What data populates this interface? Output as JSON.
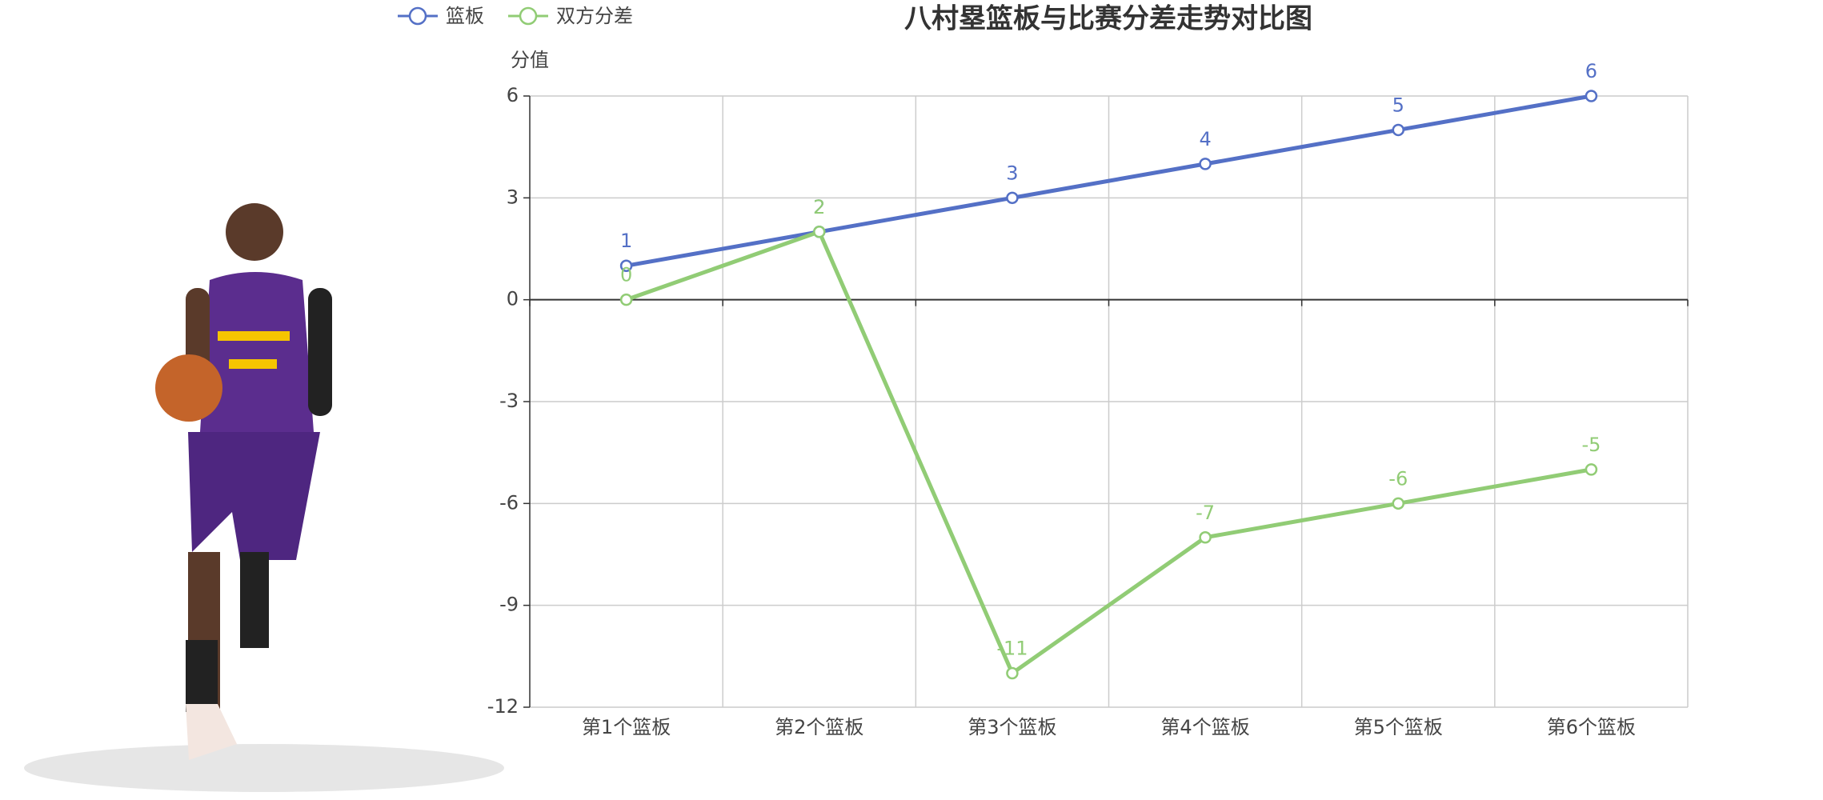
{
  "chart_data": {
    "type": "line",
    "title": "八村塁篮板与比赛分差走势对比图",
    "ylabel": "分值",
    "categories": [
      "第1个篮板",
      "第2个篮板",
      "第3个篮板",
      "第4个篮板",
      "第5个篮板",
      "第6个篮板"
    ],
    "series": [
      {
        "name": "篮板",
        "color": "#5470c6",
        "values": [
          1,
          2,
          3,
          4,
          5,
          6
        ]
      },
      {
        "name": "双方分差",
        "color": "#91cc75",
        "values": [
          0,
          2,
          -11,
          -7,
          -6,
          -5
        ]
      }
    ],
    "ylim": [
      -12,
      6
    ],
    "yticks": [
      -12,
      -9,
      -6,
      -3,
      0,
      3,
      6
    ],
    "grid": true,
    "legend": "top-left"
  }
}
